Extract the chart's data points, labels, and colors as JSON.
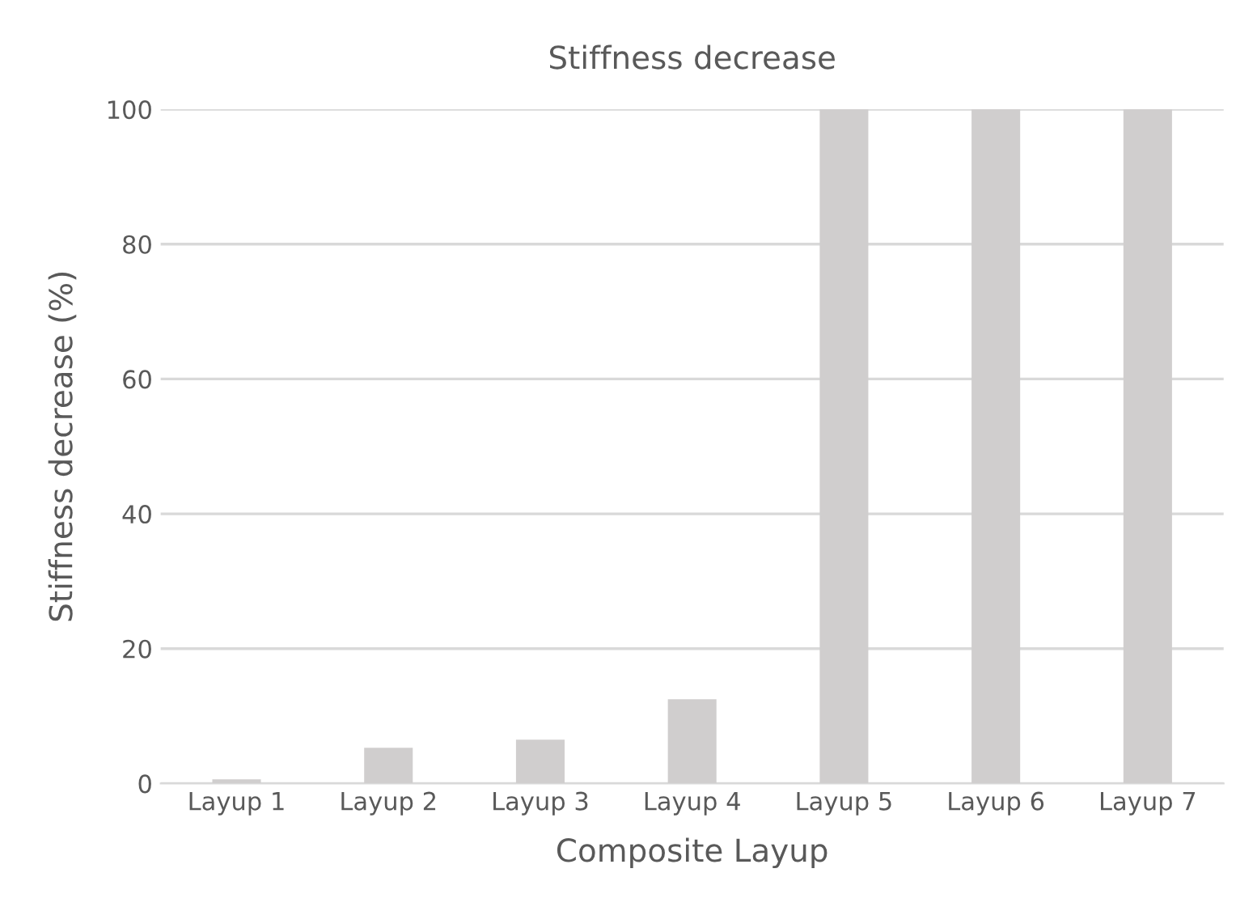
{
  "chart_data": {
    "type": "bar",
    "title": "Stiffness decrease",
    "xlabel": "Composite Layup",
    "ylabel": "Stiffness decrease (%)",
    "categories": [
      "Layup 1",
      "Layup 2",
      "Layup 3",
      "Layup 4",
      "Layup 5",
      "Layup 6",
      "Layup 7"
    ],
    "values": [
      0.6,
      5.3,
      6.5,
      12.5,
      100,
      100,
      100
    ],
    "color": "#d0cece",
    "ylim": [
      0,
      100
    ],
    "yticks": [
      0,
      20,
      40,
      60,
      80,
      100
    ],
    "grid": "y"
  }
}
